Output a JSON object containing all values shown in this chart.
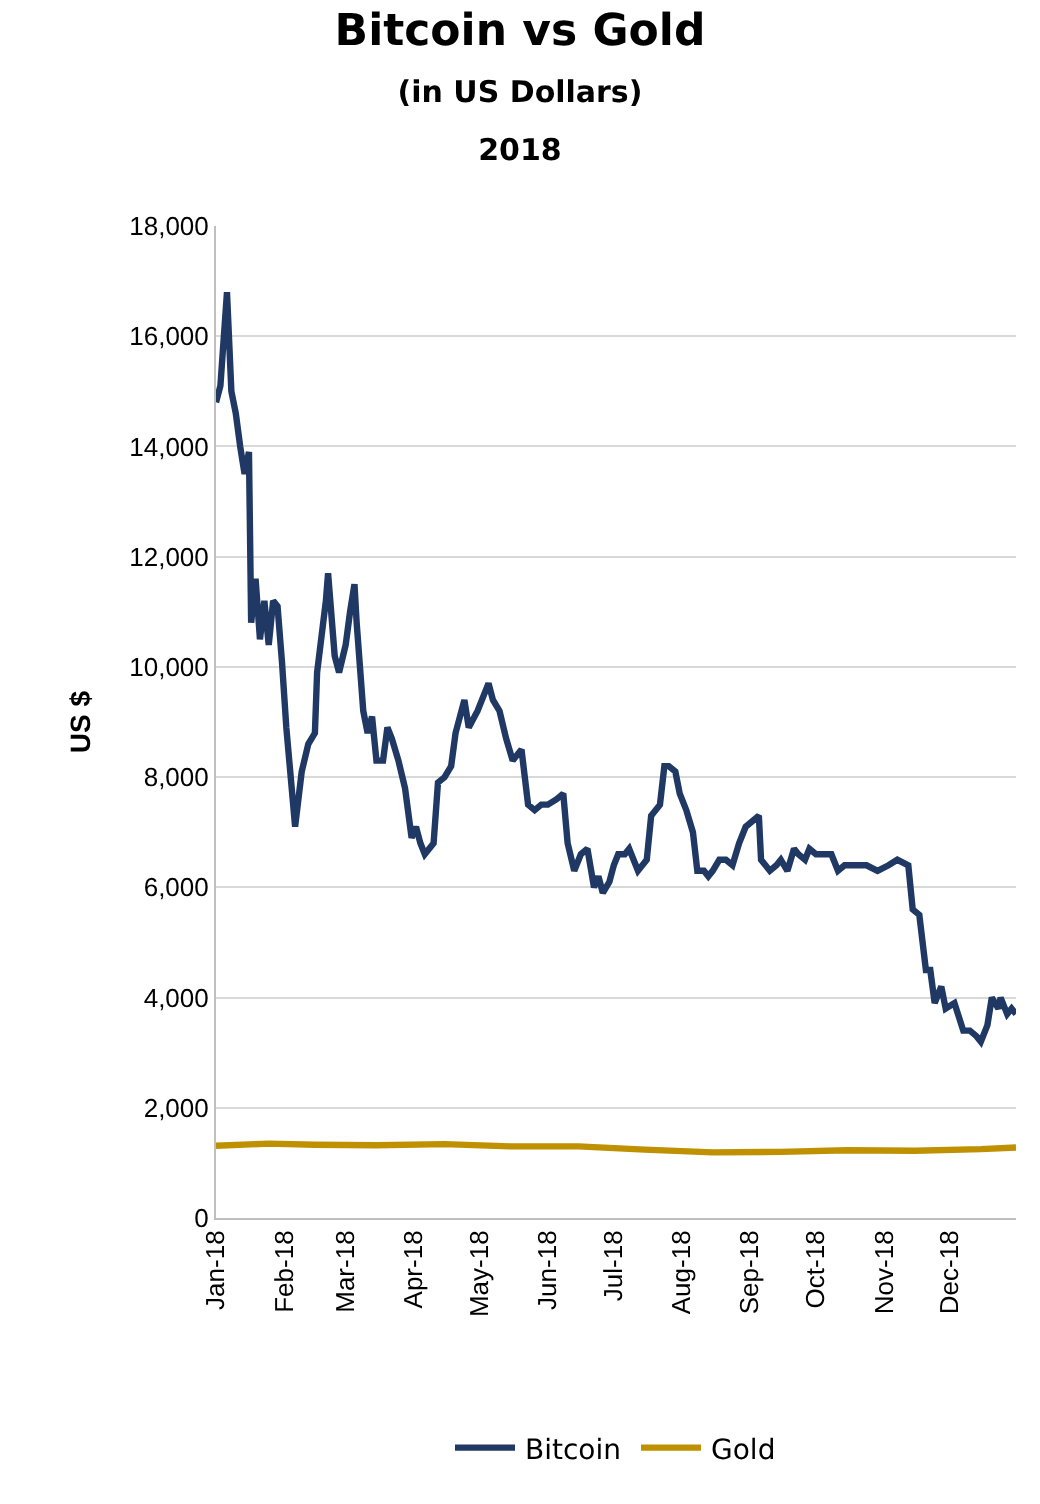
{
  "chart_data": {
    "type": "line",
    "title": "Bitcoin vs Gold",
    "subtitle": "(in US Dollars)\n2018",
    "ylabel": "US $",
    "x": [
      "2018-01-01",
      "2018-01-03",
      "2018-01-06",
      "2018-01-08",
      "2018-01-10",
      "2018-01-12",
      "2018-01-14",
      "2018-01-16",
      "2018-01-17",
      "2018-01-19",
      "2018-01-21",
      "2018-01-23",
      "2018-01-25",
      "2018-01-27",
      "2018-01-29",
      "2018-01-31",
      "2018-02-02",
      "2018-02-06",
      "2018-02-09",
      "2018-02-12",
      "2018-02-15",
      "2018-02-16",
      "2018-02-20",
      "2018-02-21",
      "2018-02-24",
      "2018-02-26",
      "2018-03-01",
      "2018-03-03",
      "2018-03-05",
      "2018-03-06",
      "2018-03-09",
      "2018-03-11",
      "2018-03-13",
      "2018-03-15",
      "2018-03-18",
      "2018-03-20",
      "2018-03-22",
      "2018-03-25",
      "2018-03-28",
      "2018-03-31",
      "2018-04-02",
      "2018-04-04",
      "2018-04-06",
      "2018-04-10",
      "2018-04-12",
      "2018-04-15",
      "2018-04-18",
      "2018-04-20",
      "2018-04-24",
      "2018-04-26",
      "2018-04-30",
      "2018-05-05",
      "2018-05-07",
      "2018-05-10",
      "2018-05-13",
      "2018-05-16",
      "2018-05-20",
      "2018-05-23",
      "2018-05-26",
      "2018-05-29",
      "2018-06-01",
      "2018-06-05",
      "2018-06-08",
      "2018-06-10",
      "2018-06-13",
      "2018-06-16",
      "2018-06-19",
      "2018-06-22",
      "2018-06-24",
      "2018-06-26",
      "2018-06-29",
      "2018-07-01",
      "2018-07-03",
      "2018-07-06",
      "2018-07-08",
      "2018-07-12",
      "2018-07-16",
      "2018-07-18",
      "2018-07-22",
      "2018-07-24",
      "2018-07-26",
      "2018-07-29",
      "2018-07-31",
      "2018-08-03",
      "2018-08-06",
      "2018-08-08",
      "2018-08-11",
      "2018-08-13",
      "2018-08-15",
      "2018-08-18",
      "2018-08-21",
      "2018-08-24",
      "2018-08-27",
      "2018-08-30",
      "2018-09-02",
      "2018-09-05",
      "2018-09-06",
      "2018-09-10",
      "2018-09-13",
      "2018-09-15",
      "2018-09-18",
      "2018-09-21",
      "2018-09-23",
      "2018-09-26",
      "2018-09-28",
      "2018-10-01",
      "2018-10-05",
      "2018-10-08",
      "2018-10-11",
      "2018-10-14",
      "2018-10-18",
      "2018-10-24",
      "2018-10-29",
      "2018-11-03",
      "2018-11-07",
      "2018-11-12",
      "2018-11-14",
      "2018-11-17",
      "2018-11-20",
      "2018-11-22",
      "2018-11-24",
      "2018-11-27",
      "2018-11-29",
      "2018-12-03",
      "2018-12-07",
      "2018-12-10",
      "2018-12-13",
      "2018-12-15",
      "2018-12-18",
      "2018-12-20",
      "2018-12-23",
      "2018-12-24",
      "2018-12-27",
      "2018-12-29",
      "2018-12-31"
    ],
    "series": [
      {
        "name": "Bitcoin",
        "color": "#1f3864",
        "values": [
          14800,
          15100,
          16800,
          15000,
          14600,
          14000,
          13500,
          13900,
          10800,
          11600,
          10500,
          11200,
          10400,
          11200,
          11100,
          10100,
          8900,
          7100,
          8100,
          8600,
          8800,
          9900,
          11200,
          11700,
          10200,
          9900,
          10400,
          11000,
          11500,
          10800,
          9200,
          8800,
          9100,
          8300,
          8300,
          8900,
          8700,
          8300,
          7800,
          6900,
          7100,
          6800,
          6600,
          6800,
          7900,
          8000,
          8200,
          8800,
          9400,
          8900,
          9200,
          9700,
          9400,
          9200,
          8700,
          8300,
          8500,
          7500,
          7400,
          7500,
          7500,
          7600,
          7700,
          6800,
          6300,
          6600,
          6700,
          6000,
          6200,
          5900,
          6100,
          6400,
          6600,
          6600,
          6700,
          6300,
          6500,
          7300,
          7500,
          8200,
          8200,
          8100,
          7700,
          7400,
          7000,
          6300,
          6300,
          6200,
          6300,
          6500,
          6500,
          6400,
          6800,
          7100,
          7200,
          7300,
          6500,
          6300,
          6400,
          6500,
          6300,
          6700,
          6600,
          6500,
          6700,
          6600,
          6600,
          6600,
          6300,
          6400,
          6400,
          6400,
          6300,
          6400,
          6500,
          6400,
          5600,
          5500,
          4500,
          4500,
          3900,
          4200,
          3800,
          3900,
          3400,
          3400,
          3300,
          3200,
          3500,
          4000,
          3800,
          4000,
          3700,
          3800,
          3700
        ]
      },
      {
        "name": "Gold",
        "color": "#bf9000",
        "x": [
          "2018-01-01",
          "2018-01-25",
          "2018-02-15",
          "2018-03-15",
          "2018-04-15",
          "2018-05-15",
          "2018-06-15",
          "2018-07-15",
          "2018-08-15",
          "2018-09-15",
          "2018-10-15",
          "2018-11-15",
          "2018-12-15",
          "2018-12-31"
        ],
        "values": [
          1310,
          1350,
          1330,
          1320,
          1340,
          1300,
          1300,
          1240,
          1190,
          1200,
          1230,
          1220,
          1250,
          1280
        ]
      }
    ],
    "xlim": [
      "2018-01-01",
      "2018-12-31"
    ],
    "xticks": [
      {
        "value": "2018-01-01",
        "label": "Jan-18"
      },
      {
        "value": "2018-02-01",
        "label": "Feb-18"
      },
      {
        "value": "2018-03-01",
        "label": "Mar-18"
      },
      {
        "value": "2018-04-01",
        "label": "Apr-18"
      },
      {
        "value": "2018-05-01",
        "label": "May-18"
      },
      {
        "value": "2018-06-01",
        "label": "Jun-18"
      },
      {
        "value": "2018-07-01",
        "label": "Jul-18"
      },
      {
        "value": "2018-08-01",
        "label": "Aug-18"
      },
      {
        "value": "2018-09-01",
        "label": "Sep-18"
      },
      {
        "value": "2018-10-01",
        "label": "Oct-18"
      },
      {
        "value": "2018-11-01",
        "label": "Nov-18"
      },
      {
        "value": "2018-12-01",
        "label": "Dec-18"
      }
    ],
    "ylim": [
      0,
      18000
    ],
    "yticks": [
      {
        "value": 0,
        "label": "0"
      },
      {
        "value": 2000,
        "label": "2,000"
      },
      {
        "value": 4000,
        "label": "4,000"
      },
      {
        "value": 6000,
        "label": "6,000"
      },
      {
        "value": 8000,
        "label": "8,000"
      },
      {
        "value": 10000,
        "label": "10,000"
      },
      {
        "value": 12000,
        "label": "12,000"
      },
      {
        "value": 14000,
        "label": "14,000"
      },
      {
        "value": 16000,
        "label": "16,000"
      },
      {
        "value": 18000,
        "label": "18,000"
      }
    ],
    "grid": "y",
    "legend": "bottom",
    "line_style": "solid",
    "marker": "none"
  }
}
